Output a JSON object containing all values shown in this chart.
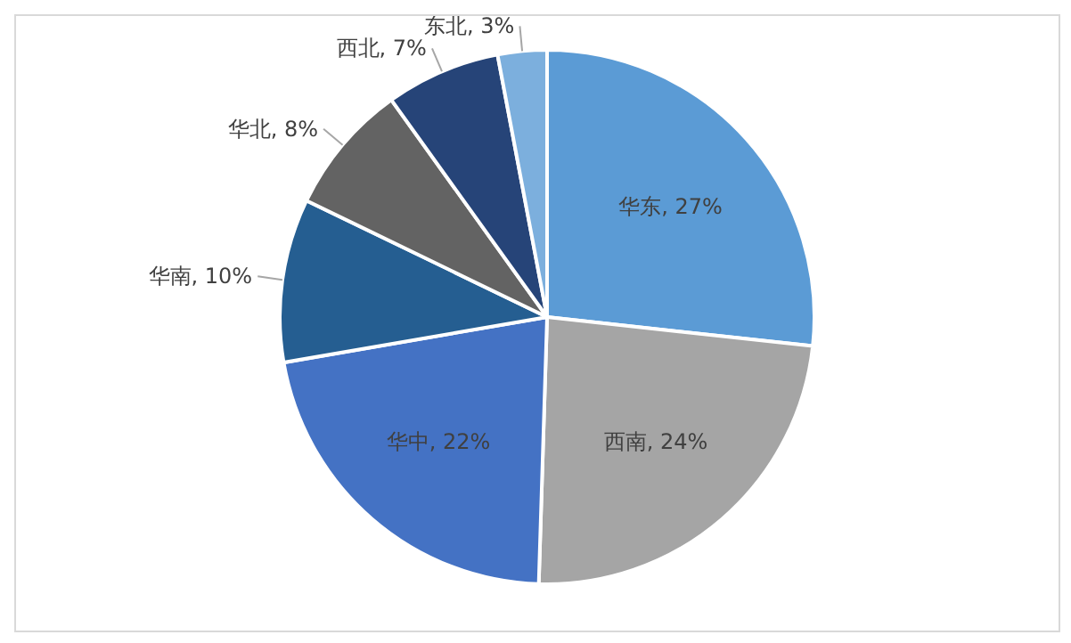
{
  "chart_data": {
    "type": "pie",
    "categories": [
      "华东",
      "西南",
      "华中",
      "华南",
      "华北",
      "西北",
      "东北"
    ],
    "values": [
      27,
      24,
      22,
      10,
      8,
      7,
      3
    ],
    "value_labels": [
      "27%",
      "24%",
      "22%",
      "10%",
      "8%",
      "7%",
      "3%"
    ],
    "colors": [
      "#5b9bd5",
      "#a5a5a5",
      "#4472c4",
      "#255e91",
      "#636363",
      "#264478",
      "#7cafdd"
    ],
    "legend": false
  }
}
